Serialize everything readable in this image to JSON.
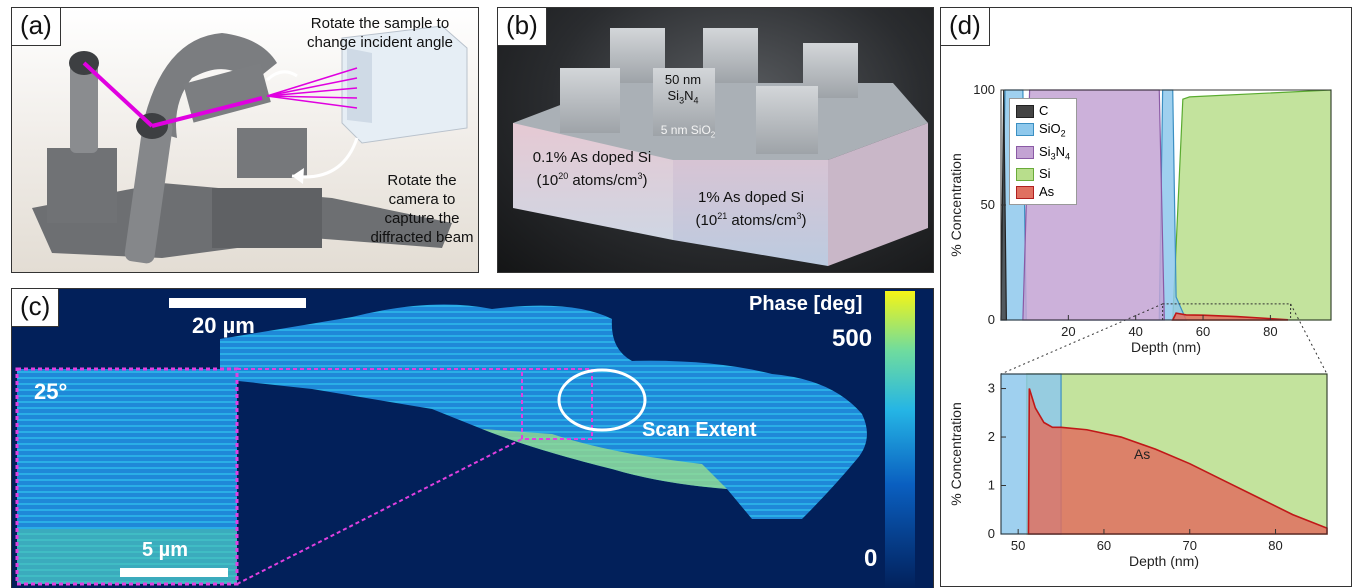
{
  "panel_a": {
    "label": "(a)",
    "annotation_rotate_sample": [
      "Rotate the sample to",
      "change incident angle"
    ],
    "annotation_rotate_camera": [
      "Rotate the",
      "camera to",
      "capture the",
      "diffracted beam"
    ]
  },
  "panel_b": {
    "label": "(b)",
    "pillar_label_1": "50 nm",
    "pillar_label_2": "Si",
    "pillar_label_2_sub": "3",
    "pillar_label_2b": "N",
    "pillar_label_2b_sub": "4",
    "oxide_label": "5 nm SiO",
    "oxide_label_sub": "2",
    "left_region_1": "0.1% As doped Si",
    "left_region_2a": "(10",
    "left_region_2sup": "20",
    "left_region_2b": " atoms/cm",
    "left_region_2sup2": "3",
    "left_region_2c": ")",
    "right_region_1": "1% As doped Si",
    "right_region_2a": "(10",
    "right_region_2sup": "21",
    "right_region_2b": " atoms/cm",
    "right_region_2sup2": "3",
    "right_region_2c": ")"
  },
  "panel_c": {
    "label": "(c)",
    "scalebar_main": "20 µm",
    "scalebar_inset": "5 µm",
    "inset_angle": "25°",
    "scan_label": "Scan Extent",
    "colorbar_title": "Phase [deg]",
    "colorbar_max": "500",
    "colorbar_min": "0",
    "colors": {
      "background": "#02205a",
      "low": "#00207a",
      "mid": "#2fb0e8",
      "high": "#f5f516"
    }
  },
  "panel_d": {
    "label": "(d)",
    "colors": {
      "C": "#444444",
      "SiO2": "#8ec8ec",
      "Si3N4": "#c3a3d3",
      "Si": "#b8de8c",
      "As": "#e07060"
    },
    "chart_data": [
      {
        "type": "area",
        "xlabel": "Depth (nm)",
        "ylabel": "% Concentration",
        "xlim": [
          0,
          98
        ],
        "ylim": [
          0,
          100
        ],
        "xticks": [
          "20",
          "40",
          "60",
          "80"
        ],
        "yticks": [
          "0",
          "50",
          "100"
        ],
        "legend": [
          {
            "name": "C",
            "sub": ""
          },
          {
            "name": "SiO",
            "sub": "2"
          },
          {
            "name": "Si",
            "sub": "3",
            "name2": "N",
            "sub2": "4"
          },
          {
            "name": "Si",
            "sub": ""
          },
          {
            "name": "As",
            "sub": ""
          }
        ],
        "legend_position": "top-left",
        "series": [
          {
            "name": "C",
            "x": [
              0,
              0.8,
              1.6
            ],
            "y": [
              0,
              100,
              0
            ]
          },
          {
            "name": "SiO2",
            "x": [
              0,
              1.2,
              6.5,
              7.5,
              47,
              48,
              51,
              52,
              55
            ],
            "y": [
              0,
              100,
              100,
              0,
              0,
              100,
              100,
              10,
              0
            ]
          },
          {
            "name": "Si3N4",
            "x": [
              6.5,
              8.5,
              47,
              48.5
            ],
            "y": [
              0,
              100,
              100,
              0
            ]
          },
          {
            "name": "Si",
            "x": [
              51,
              54,
              56,
              98
            ],
            "y": [
              0,
              96,
              97,
              100
            ]
          },
          {
            "name": "As",
            "x": [
              51,
              52,
              55,
              60,
              70,
              80,
              85
            ],
            "y": [
              0,
              3,
              2.2,
              2.1,
              1.5,
              0.6,
              0.1
            ]
          }
        ]
      },
      {
        "type": "area",
        "xlabel": "Depth (nm)",
        "ylabel": "% Concentration",
        "xlim": [
          48,
          86
        ],
        "ylim": [
          0,
          3.3
        ],
        "xticks": [
          "50",
          "60",
          "70",
          "80"
        ],
        "yticks": [
          "0",
          "1",
          "2",
          "3"
        ],
        "annotation": "As",
        "series": [
          {
            "name": "SiO2",
            "x": [
              48,
              55
            ],
            "y": [
              3.3,
              3.3
            ]
          },
          {
            "name": "Si",
            "x": [
              51,
              86
            ],
            "y": [
              3.3,
              3.3
            ]
          },
          {
            "name": "As",
            "x": [
              51.2,
              51.3,
              52,
              53,
              54,
              55,
              58,
              62,
              66,
              70,
              74,
              78,
              82,
              86
            ],
            "y": [
              0,
              3.0,
              2.6,
              2.3,
              2.2,
              2.2,
              2.15,
              2.0,
              1.75,
              1.45,
              1.1,
              0.75,
              0.4,
              0.12
            ]
          }
        ]
      }
    ]
  }
}
